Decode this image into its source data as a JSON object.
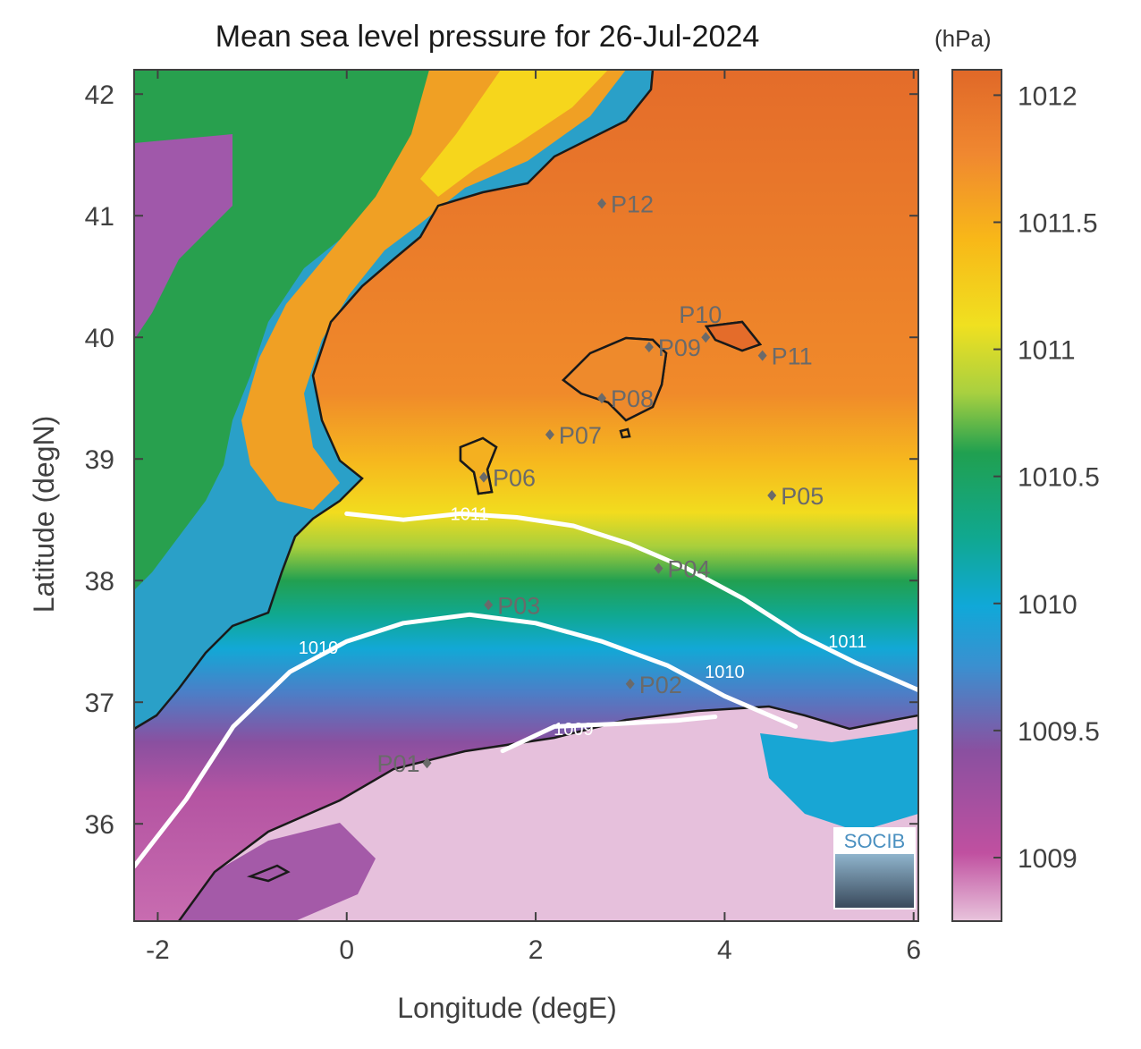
{
  "title": "Mean sea level pressure for 26-Jul-2024",
  "unit": "(hPa)",
  "axes": {
    "xlabel": "Longitude (degE)",
    "ylabel": "Latitude (degN)",
    "xlim": [
      -2.25,
      6.05
    ],
    "ylim": [
      35.2,
      42.2
    ],
    "xticks": [
      -2,
      0,
      2,
      4,
      6
    ],
    "yticks": [
      36,
      37,
      38,
      39,
      40,
      41,
      42
    ]
  },
  "colorbar": {
    "range": [
      1008.75,
      1012.1
    ],
    "ticks": [
      1009,
      1009.5,
      1010,
      1010.5,
      1011,
      1011.5,
      1012
    ],
    "tick_labels": [
      "1009",
      "1009.5",
      "1010",
      "1010.5",
      "1011",
      "1011.5",
      "1012"
    ],
    "colors": [
      "#e8c4dc",
      "#c050a0",
      "#8a50a0",
      "#4a80c8",
      "#10a8d8",
      "#10a890",
      "#20a050",
      "#a8d040",
      "#f0e020",
      "#f8b818",
      "#f08830",
      "#e06828"
    ]
  },
  "contours": [
    {
      "label": "1011",
      "points": [
        [
          0.0,
          38.55
        ],
        [
          0.6,
          38.5
        ],
        [
          1.2,
          38.55
        ],
        [
          1.8,
          38.52
        ],
        [
          2.4,
          38.45
        ],
        [
          3.0,
          38.3
        ],
        [
          3.6,
          38.1
        ],
        [
          4.2,
          37.85
        ],
        [
          4.8,
          37.55
        ],
        [
          5.4,
          37.32
        ],
        [
          6.05,
          37.1
        ]
      ],
      "label_positions": [
        [
          1.3,
          38.55
        ],
        [
          5.3,
          37.5
        ]
      ]
    },
    {
      "label": "1010",
      "points": [
        [
          -2.25,
          35.65
        ],
        [
          -1.7,
          36.2
        ],
        [
          -1.2,
          36.8
        ],
        [
          -0.6,
          37.25
        ],
        [
          0.0,
          37.5
        ],
        [
          0.6,
          37.65
        ],
        [
          1.3,
          37.72
        ],
        [
          2.0,
          37.65
        ],
        [
          2.7,
          37.5
        ],
        [
          3.4,
          37.3
        ],
        [
          4.0,
          37.05
        ],
        [
          4.75,
          36.8
        ]
      ],
      "label_positions": [
        [
          -0.3,
          37.45
        ],
        [
          4.0,
          37.25
        ]
      ]
    },
    {
      "label": "1009",
      "points": [
        [
          1.65,
          36.6
        ],
        [
          2.2,
          36.8
        ],
        [
          2.8,
          36.82
        ],
        [
          3.5,
          36.85
        ],
        [
          3.9,
          36.88
        ]
      ],
      "label_positions": [
        [
          2.4,
          36.78
        ]
      ]
    }
  ],
  "stations": [
    {
      "id": "P01",
      "lon": 0.85,
      "lat": 36.5
    },
    {
      "id": "P02",
      "lon": 3.0,
      "lat": 37.15
    },
    {
      "id": "P03",
      "lon": 1.5,
      "lat": 37.8
    },
    {
      "id": "P04",
      "lon": 3.3,
      "lat": 38.1
    },
    {
      "id": "P05",
      "lon": 4.5,
      "lat": 38.7
    },
    {
      "id": "P06",
      "lon": 1.45,
      "lat": 38.85
    },
    {
      "id": "P07",
      "lon": 2.15,
      "lat": 39.2
    },
    {
      "id": "P08",
      "lon": 2.7,
      "lat": 39.5
    },
    {
      "id": "P09",
      "lon": 3.2,
      "lat": 39.92
    },
    {
      "id": "P10",
      "lon": 3.8,
      "lat": 40.0
    },
    {
      "id": "P11",
      "lon": 4.4,
      "lat": 39.85
    },
    {
      "id": "P12",
      "lon": 2.7,
      "lat": 41.1
    }
  ],
  "logo_text": "SOCIB"
}
